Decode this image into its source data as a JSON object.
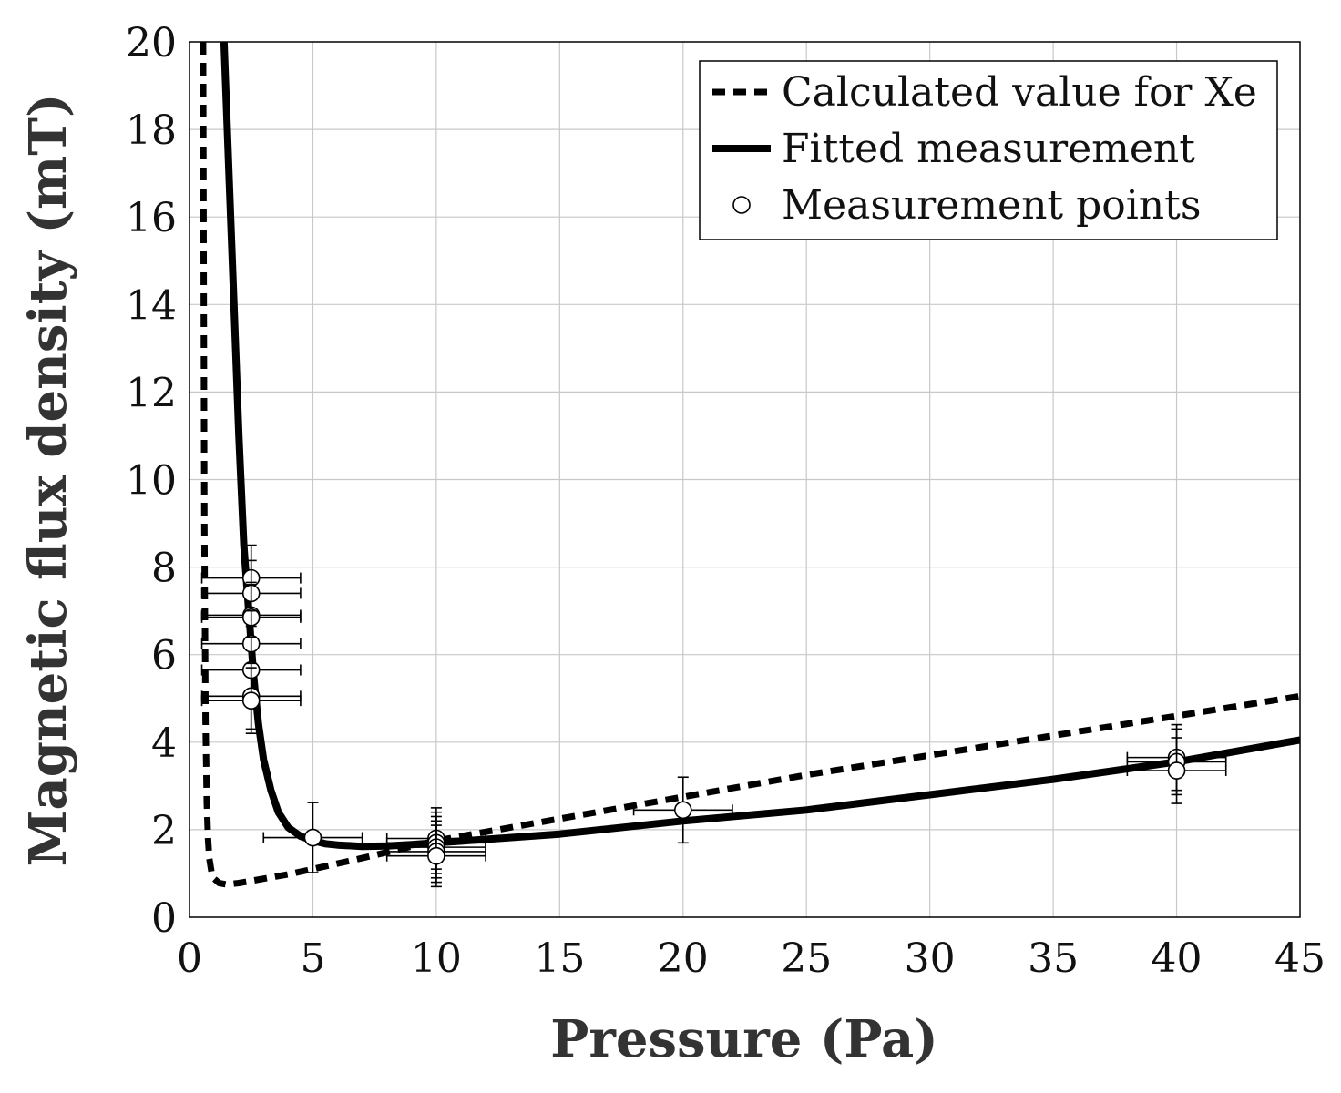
{
  "chart_data": {
    "type": "line",
    "title": "",
    "xlabel": "Pressure (Pa)",
    "ylabel": "Magnetic flux density (mT)",
    "xlim": [
      0,
      45
    ],
    "ylim": [
      0,
      20
    ],
    "xticks": [
      0,
      5,
      10,
      15,
      20,
      25,
      30,
      35,
      40,
      45
    ],
    "yticks": [
      0,
      2,
      4,
      6,
      8,
      10,
      12,
      14,
      16,
      18,
      20
    ],
    "grid": true,
    "legend_position": "top-right",
    "series": [
      {
        "name": "Calculated value for Xe",
        "style": "dashed",
        "x": [
          0.55,
          0.6,
          0.65,
          0.7,
          0.75,
          0.8,
          0.9,
          1.0,
          1.2,
          1.5,
          2.0,
          3.0,
          4.0,
          5.0,
          7.0,
          10.0,
          15.0,
          20.0,
          25.0,
          30.0,
          35.0,
          40.0,
          45.0
        ],
        "y": [
          20.0,
          9.0,
          4.5,
          2.6,
          1.8,
          1.35,
          1.0,
          0.88,
          0.78,
          0.75,
          0.78,
          0.88,
          0.98,
          1.1,
          1.35,
          1.75,
          2.25,
          2.75,
          3.25,
          3.7,
          4.15,
          4.6,
          5.05
        ]
      },
      {
        "name": "Fitted measurement",
        "style": "solid",
        "x": [
          1.4,
          1.6,
          1.8,
          2.0,
          2.2,
          2.4,
          2.6,
          2.8,
          3.0,
          3.3,
          3.6,
          4.0,
          4.5,
          5.0,
          5.5,
          6.0,
          7.0,
          8.0,
          9.0,
          10.0,
          12.0,
          15.0,
          20.0,
          25.0,
          30.0,
          35.0,
          40.0,
          45.0
        ],
        "y": [
          20.0,
          17.0,
          14.0,
          11.0,
          8.5,
          7.0,
          5.5,
          4.4,
          3.6,
          2.9,
          2.4,
          2.05,
          1.85,
          1.75,
          1.68,
          1.65,
          1.62,
          1.63,
          1.66,
          1.7,
          1.78,
          1.9,
          2.2,
          2.45,
          2.8,
          3.15,
          3.55,
          4.05
        ]
      }
    ],
    "measurements": {
      "name": "Measurement points",
      "points": [
        {
          "x": 2.5,
          "y": 7.75,
          "xerr": 2.0,
          "yerr": 0.75
        },
        {
          "x": 2.5,
          "y": 7.4,
          "xerr": 2.0,
          "yerr": 0.75
        },
        {
          "x": 2.5,
          "y": 6.9,
          "xerr": 2.0,
          "yerr": 0.75
        },
        {
          "x": 2.5,
          "y": 6.85,
          "xerr": 2.0,
          "yerr": 0.75
        },
        {
          "x": 2.5,
          "y": 6.25,
          "xerr": 2.0,
          "yerr": 0.75
        },
        {
          "x": 2.5,
          "y": 5.65,
          "xerr": 2.0,
          "yerr": 0.75
        },
        {
          "x": 2.5,
          "y": 5.05,
          "xerr": 2.0,
          "yerr": 0.75
        },
        {
          "x": 2.5,
          "y": 4.95,
          "xerr": 2.0,
          "yerr": 0.75
        },
        {
          "x": 5.0,
          "y": 1.82,
          "xerr": 2.0,
          "yerr": 0.8
        },
        {
          "x": 10.0,
          "y": 1.8,
          "xerr": 2.0,
          "yerr": 0.7
        },
        {
          "x": 10.0,
          "y": 1.7,
          "xerr": 2.0,
          "yerr": 0.7
        },
        {
          "x": 10.0,
          "y": 1.6,
          "xerr": 2.0,
          "yerr": 0.7
        },
        {
          "x": 10.0,
          "y": 1.5,
          "xerr": 2.0,
          "yerr": 0.7
        },
        {
          "x": 10.0,
          "y": 1.4,
          "xerr": 2.0,
          "yerr": 0.7
        },
        {
          "x": 20.0,
          "y": 2.45,
          "xerr": 2.0,
          "yerr": 0.75
        },
        {
          "x": 40.0,
          "y": 3.65,
          "xerr": 2.0,
          "yerr": 0.75
        },
        {
          "x": 40.0,
          "y": 3.55,
          "xerr": 2.0,
          "yerr": 0.75
        },
        {
          "x": 40.0,
          "y": 3.35,
          "xerr": 2.0,
          "yerr": 0.75
        }
      ]
    }
  }
}
